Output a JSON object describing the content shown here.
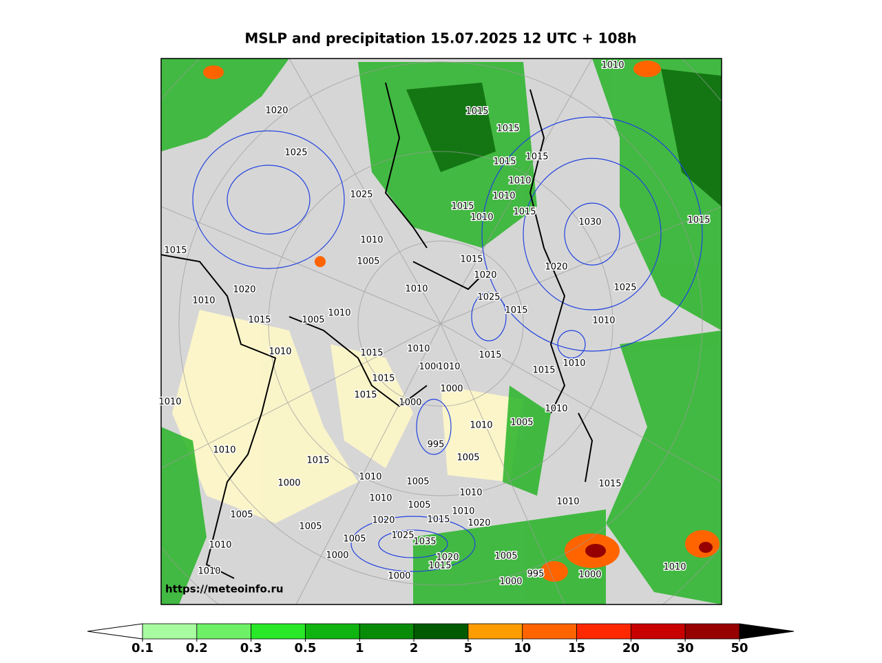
{
  "title": "MSLP and precipitation 15.07.2025 12 UTC + 108h",
  "watermark": "https://meteoinfo.ru",
  "colorbar": {
    "ticks": [
      0.1,
      0.2,
      0.3,
      0.5,
      1,
      2,
      5,
      10,
      15,
      20,
      30,
      50
    ],
    "colors": [
      "#a8fca0",
      "#6ef066",
      "#28e828",
      "#10b410",
      "#088c08",
      "#005a00",
      "#ff9c00",
      "#ff6400",
      "#ff2800",
      "#c80000",
      "#960000"
    ],
    "under_color": "#ffffff",
    "over_color": "#000000"
  },
  "isobar_labels": [
    1010,
    1015,
    1015,
    1020,
    1025,
    1015,
    1015,
    1010,
    1025,
    1010,
    1015,
    1010,
    1015,
    1030,
    1015,
    1010,
    1015,
    1005,
    1015,
    1020,
    1020,
    1020,
    1010,
    1025,
    1025,
    1010,
    1015,
    1010,
    1015,
    1005,
    1010,
    1010,
    1010,
    1015,
    1015,
    1010,
    1015,
    1000,
    1010,
    1015,
    1000,
    1015,
    1010,
    1010,
    1000,
    1005,
    1010,
    995,
    1010,
    1015,
    1005,
    1010,
    1015,
    1005,
    1000,
    1010,
    1005,
    1010,
    1010,
    1015,
    1010,
    1020,
    1020,
    1005,
    1005,
    1025,
    1005,
    1010,
    1035,
    1000,
    1020,
    1005,
    1015,
    1010,
    995,
    1000,
    1000,
    1010,
    1000
  ]
}
